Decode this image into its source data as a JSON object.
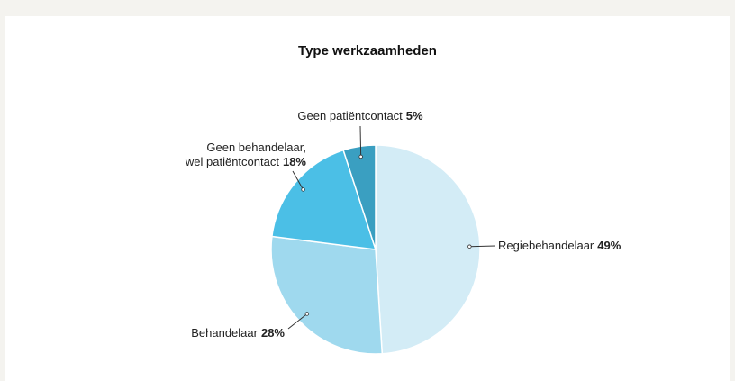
{
  "chart_data": {
    "type": "pie",
    "title": "Type werkzaamheden",
    "categories": [
      "Regiebehandelaar",
      "Behandelaar",
      "Geen behandelaar,\nwel patiëntcontact",
      "Geen patiëntcontact"
    ],
    "values": [
      49,
      28,
      18,
      5
    ],
    "value_labels": [
      "49%",
      "28%",
      "18%",
      "5%"
    ],
    "colors": [
      "#d3ecf6",
      "#9fd9ee",
      "#4bbfe6",
      "#3a9fc1"
    ]
  }
}
